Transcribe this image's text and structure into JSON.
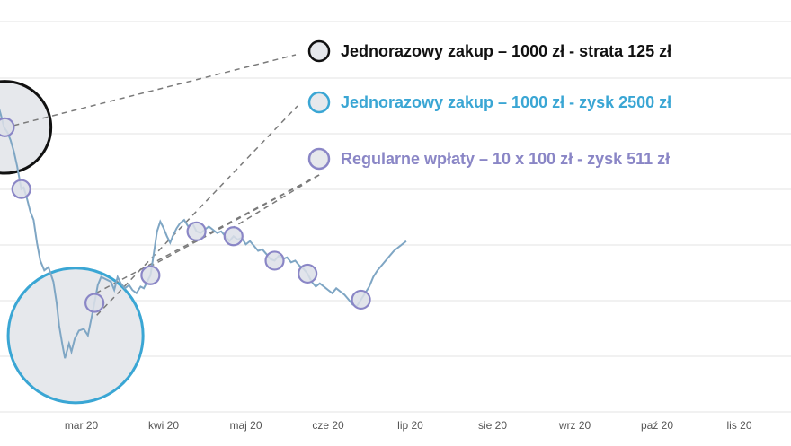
{
  "chart_data": {
    "type": "line",
    "title": "",
    "xlabel": "",
    "ylabel": "",
    "grid": true,
    "x_ticks": [
      "20",
      "mar 20",
      "kwi 20",
      "maj 20",
      "cze 20",
      "lip 20",
      "sie 20",
      "wrz 20",
      "paź 20",
      "lis 20"
    ],
    "series": [
      {
        "name": "",
        "color": "#7fa6c4",
        "points": [
          [
            -0.14,
            1.3
          ],
          [
            -0.06,
            1.29
          ],
          [
            -0.02,
            1.35
          ],
          [
            0.02,
            1.28
          ],
          [
            0.06,
            1.2
          ],
          [
            0.1,
            1.17
          ],
          [
            0.14,
            1.12
          ],
          [
            0.18,
            1.05
          ],
          [
            0.22,
            0.96
          ],
          [
            0.27,
            0.82
          ],
          [
            0.3,
            0.83
          ],
          [
            0.34,
            0.76
          ],
          [
            0.38,
            0.68
          ],
          [
            0.42,
            0.63
          ],
          [
            0.46,
            0.49
          ],
          [
            0.5,
            0.38
          ],
          [
            0.55,
            0.32
          ],
          [
            0.6,
            0.34
          ],
          [
            0.66,
            0.25
          ],
          [
            0.7,
            0.12
          ],
          [
            0.73,
            -0.02
          ],
          [
            0.77,
            -0.14
          ],
          [
            0.8,
            -0.22
          ],
          [
            0.85,
            -0.13
          ],
          [
            0.88,
            -0.18
          ],
          [
            0.92,
            -0.1
          ],
          [
            0.97,
            -0.05
          ],
          [
            1.03,
            -0.04
          ],
          [
            1.08,
            -0.08
          ],
          [
            1.12,
            0.02
          ],
          [
            1.16,
            0.12
          ],
          [
            1.2,
            0.23
          ],
          [
            1.24,
            0.28
          ],
          [
            1.28,
            0.27
          ],
          [
            1.32,
            0.26
          ],
          [
            1.36,
            0.25
          ],
          [
            1.4,
            0.2
          ],
          [
            1.44,
            0.28
          ],
          [
            1.48,
            0.24
          ],
          [
            1.53,
            0.21
          ],
          [
            1.58,
            0.23
          ],
          [
            1.62,
            0.2
          ],
          [
            1.67,
            0.18
          ],
          [
            1.72,
            0.22
          ],
          [
            1.76,
            0.21
          ],
          [
            1.8,
            0.25
          ],
          [
            1.84,
            0.29
          ],
          [
            1.88,
            0.42
          ],
          [
            1.92,
            0.56
          ],
          [
            1.96,
            0.62
          ],
          [
            2.0,
            0.58
          ],
          [
            2.04,
            0.53
          ],
          [
            2.08,
            0.49
          ],
          [
            2.12,
            0.54
          ],
          [
            2.16,
            0.58
          ],
          [
            2.2,
            0.61
          ],
          [
            2.25,
            0.63
          ],
          [
            2.3,
            0.59
          ],
          [
            2.35,
            0.61
          ],
          [
            2.4,
            0.56
          ],
          [
            2.45,
            0.55
          ],
          [
            2.5,
            0.57
          ],
          [
            2.55,
            0.59
          ],
          [
            2.6,
            0.57
          ],
          [
            2.65,
            0.55
          ],
          [
            2.7,
            0.56
          ],
          [
            2.75,
            0.53
          ],
          [
            2.8,
            0.5
          ],
          [
            2.85,
            0.53
          ],
          [
            2.9,
            0.51
          ],
          [
            2.95,
            0.52
          ],
          [
            3.0,
            0.48
          ],
          [
            3.05,
            0.5
          ],
          [
            3.1,
            0.47
          ],
          [
            3.15,
            0.44
          ],
          [
            3.2,
            0.45
          ],
          [
            3.25,
            0.42
          ],
          [
            3.3,
            0.39
          ],
          [
            3.35,
            0.38
          ],
          [
            3.4,
            0.41
          ],
          [
            3.45,
            0.39
          ],
          [
            3.5,
            0.4
          ],
          [
            3.55,
            0.37
          ],
          [
            3.6,
            0.38
          ],
          [
            3.65,
            0.35
          ],
          [
            3.7,
            0.33
          ],
          [
            3.75,
            0.3
          ],
          [
            3.8,
            0.25
          ],
          [
            3.85,
            0.22
          ],
          [
            3.9,
            0.24
          ],
          [
            3.95,
            0.22
          ],
          [
            4.0,
            0.2
          ],
          [
            4.05,
            0.18
          ],
          [
            4.1,
            0.21
          ],
          [
            4.15,
            0.19
          ],
          [
            4.2,
            0.17
          ],
          [
            4.25,
            0.14
          ],
          [
            4.3,
            0.11
          ],
          [
            4.35,
            0.1
          ],
          [
            4.4,
            0.14
          ],
          [
            4.45,
            0.18
          ],
          [
            4.5,
            0.22
          ],
          [
            4.55,
            0.28
          ],
          [
            4.6,
            0.32
          ],
          [
            4.65,
            0.35
          ],
          [
            4.7,
            0.38
          ],
          [
            4.75,
            0.41
          ],
          [
            4.8,
            0.44
          ],
          [
            4.85,
            0.46
          ],
          [
            4.9,
            0.48
          ],
          [
            4.95,
            0.5
          ]
        ]
      }
    ],
    "markers": [
      {
        "x": 0.27,
        "y": 0.82
      },
      {
        "x": 1.16,
        "y": 0.12
      },
      {
        "x": 1.84,
        "y": 0.29
      },
      {
        "x": 2.4,
        "y": 0.56
      },
      {
        "x": 2.85,
        "y": 0.53
      },
      {
        "x": 3.35,
        "y": 0.38
      },
      {
        "x": 3.75,
        "y": 0.3
      },
      {
        "x": 4.4,
        "y": 0.14
      },
      {
        "x": 0.07,
        "y": 1.2
      }
    ],
    "highlight_circles": [
      {
        "x": 0.07,
        "y": 1.2,
        "radius_x_units": 0.56,
        "style": "loss"
      },
      {
        "x": 0.93,
        "y": -0.08,
        "radius_x_units": 0.82,
        "style": "gain"
      }
    ],
    "legend": [
      {
        "label": "Jednorazowy zakup – 1000 zł - strata 125 zł",
        "color": "#111111",
        "marker_fill": "#e6e8ec",
        "marker_stroke": "#111111"
      },
      {
        "label": "Jednorazowy zakup – 1000 zł - zysk 2500 zł",
        "color": "#3aa6d4",
        "marker_fill": "#e6e8ec",
        "marker_stroke": "#3aa6d4"
      },
      {
        "label": "Regularne wpłaty  – 10 x 100 zł - zysk 511 zł",
        "color": "#8a86c6",
        "marker_fill": "#e6e8ec",
        "marker_stroke": "#8a86c6"
      }
    ],
    "ylim": [
      -0.55,
      1.85
    ],
    "xlim": [
      -0.14,
      4.95
    ],
    "legend_placement": "top-right"
  },
  "colors": {
    "grid": "#e3e3e3",
    "line": "#7fa6c4",
    "marker_fill": "#dcdfe8",
    "marker_stroke": "#8a86c6",
    "circle_loss_stroke": "#111111",
    "circle_gain_stroke": "#3aa6d4",
    "circle_fill": "#e6e8ec",
    "dash": "#7a7a7a"
  }
}
